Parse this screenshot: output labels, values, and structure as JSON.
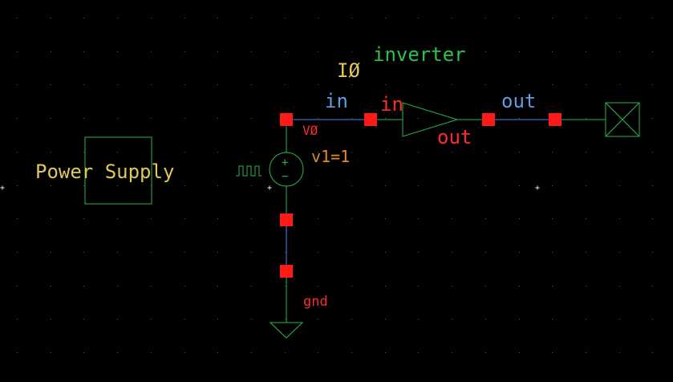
{
  "colors": {
    "background": "#000000",
    "grid_dot": "#5a5a5a",
    "wire": "#4a86e8",
    "component": "#2db54a",
    "pin": "#ff1a1a",
    "label_yellow": "#e0c85a",
    "label_green": "#2fc24a",
    "label_blue": "#5a9fe0",
    "label_red": "#ff2a2a",
    "label_orange": "#e08a2a",
    "white_marker": "#ffffff"
  },
  "labels": {
    "instance_name": "IØ",
    "cell_name": "inverter",
    "net_in": "in",
    "pin_in": "in",
    "pin_out": "out",
    "net_out": "out",
    "source_name": "VØ",
    "source_param": "v1=1",
    "power_supply": "Power Supply",
    "gnd": "gnd",
    "plus_sign": "+",
    "minus_sign": "−"
  },
  "icons": {
    "pulse_waveform": "pulse-waveform-icon",
    "ground": "ground-symbol",
    "output_terminal": "terminal-box-icon"
  }
}
